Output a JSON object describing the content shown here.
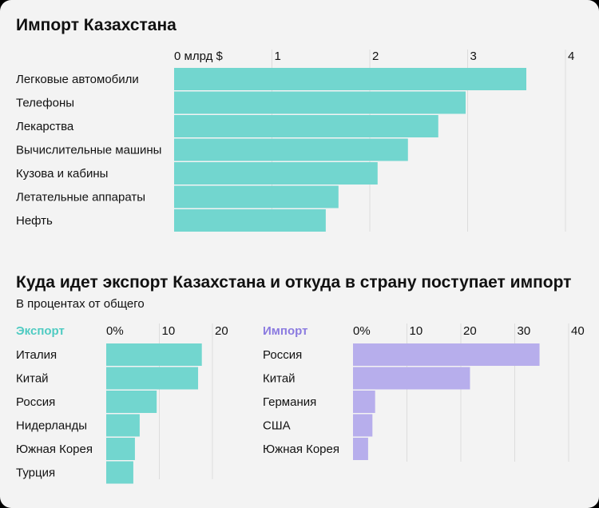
{
  "chart_data": [
    {
      "type": "bar",
      "orientation": "horizontal",
      "title": "Импорт Казахстана",
      "tick_labels": [
        "0 млрд $",
        "1",
        "2",
        "3",
        "4"
      ],
      "xlim": [
        0,
        4
      ],
      "grid": true,
      "color": "#72d6cf",
      "categories": [
        "Легковые автомобили",
        "Телефоны",
        "Лекарства",
        "Вычислительные машины",
        "Кузова и кабины",
        "Летательные аппараты",
        "Нефть"
      ],
      "values": [
        3.6,
        2.98,
        2.7,
        2.39,
        2.08,
        1.68,
        1.55
      ]
    },
    {
      "type": "bar",
      "orientation": "horizontal",
      "group_title": "Куда идет экспорт Казахстана и откуда в страну поступает импорт",
      "subtitle": "В процентах от общего",
      "title": "Экспорт",
      "title_color": "#4fcbc2",
      "tick_labels": [
        "0%",
        "10",
        "20"
      ],
      "xlim": [
        0,
        20
      ],
      "grid": true,
      "color": "#72d6cf",
      "categories": [
        "Италия",
        "Китай",
        "Россия",
        "Нидерланды",
        "Южная Корея",
        "Турция"
      ],
      "values": [
        18.0,
        17.3,
        9.5,
        6.3,
        5.4,
        5.1
      ]
    },
    {
      "type": "bar",
      "orientation": "horizontal",
      "title": "Импорт",
      "title_color": "#8b7be0",
      "tick_labels": [
        "0%",
        "10",
        "20",
        "30",
        "40"
      ],
      "xlim": [
        0,
        40
      ],
      "grid": true,
      "color": "#b7aeec",
      "categories": [
        "Россия",
        "Китай",
        "Германия",
        "США",
        "Южная Корея"
      ],
      "values": [
        34.6,
        21.7,
        4.1,
        3.6,
        2.8
      ]
    }
  ]
}
